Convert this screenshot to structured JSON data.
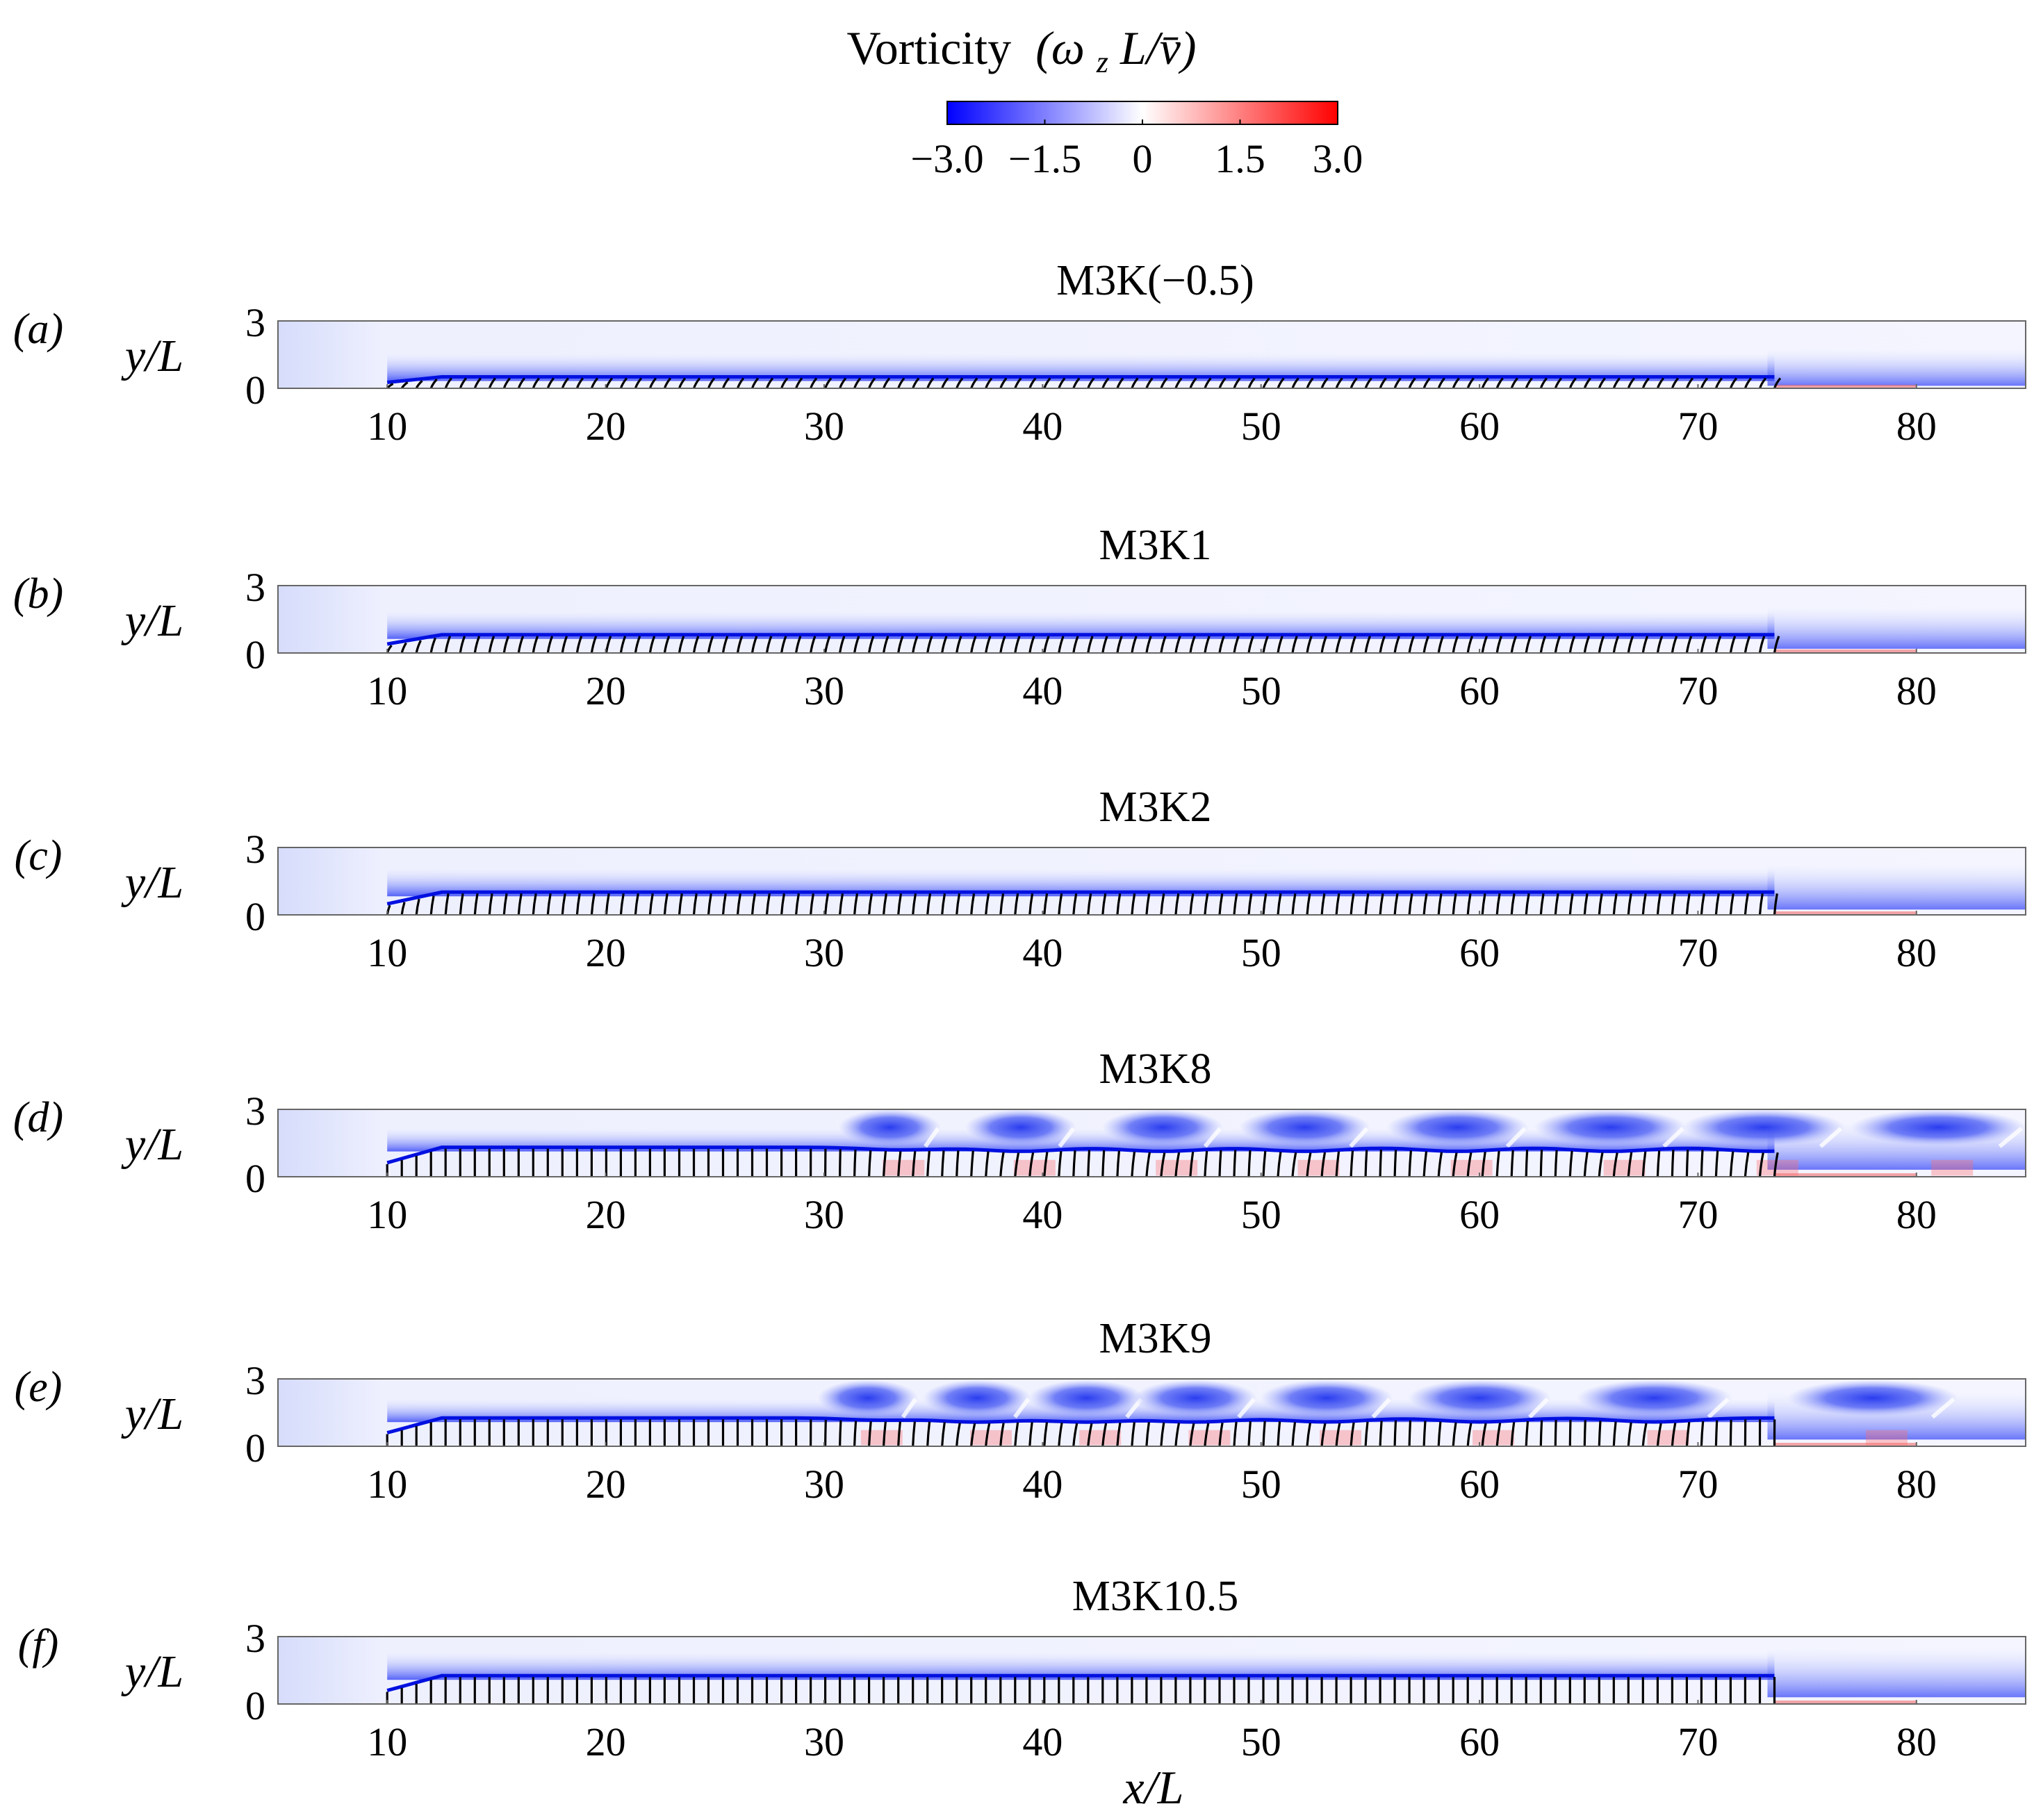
{
  "figure": {
    "colorbar": {
      "title_prefix": "Vorticity",
      "title_math": "(ω",
      "title_sub": "z",
      "title_math2": "L/v̄)",
      "min": -3.0,
      "max": 3.0,
      "tick_values": [
        -3.0,
        -1.5,
        0,
        1.5,
        3.0
      ],
      "tick_labels": [
        "−3.0",
        "−1.5",
        "0",
        "1.5",
        "3.0"
      ],
      "colors": {
        "negative": "#0000ff",
        "zero": "#ffffff",
        "positive": "#ff0000"
      }
    },
    "x_axis_label": "x/L",
    "y_axis_label": "y/L"
  },
  "chart_data": [
    {
      "type": "heatmap",
      "panel_label": "(a)",
      "title": "M3K(−0.5)",
      "xlabel": "x/L",
      "ylabel": "y/L",
      "xlim": [
        5,
        85
      ],
      "ylim": [
        0,
        3
      ],
      "xticks": [
        10,
        20,
        30,
        40,
        50,
        60,
        70,
        80
      ],
      "yticks": [
        0,
        3
      ],
      "canopy": {
        "x_start": 10,
        "x_end": 73.5,
        "height": 0.45,
        "lean": 1.2,
        "rows": 96
      },
      "flow": "steady shear layer over inclined canopy",
      "vortex_centers_x": []
    },
    {
      "type": "heatmap",
      "panel_label": "(b)",
      "title": "M3K1",
      "xlabel": "x/L",
      "ylabel": "y/L",
      "xlim": [
        5,
        85
      ],
      "ylim": [
        0,
        3
      ],
      "xticks": [
        10,
        20,
        30,
        40,
        50,
        60,
        70,
        80
      ],
      "yticks": [
        0,
        3
      ],
      "canopy": {
        "x_start": 10,
        "x_end": 73.5,
        "height": 0.75,
        "lean": 0.9,
        "rows": 96
      },
      "flow": "steady shear layer",
      "vortex_centers_x": []
    },
    {
      "type": "heatmap",
      "panel_label": "(c)",
      "title": "M3K2",
      "xlabel": "x/L",
      "ylabel": "y/L",
      "xlim": [
        5,
        85
      ],
      "ylim": [
        0,
        3
      ],
      "xticks": [
        10,
        20,
        30,
        40,
        50,
        60,
        70,
        80
      ],
      "yticks": [
        0,
        3
      ],
      "canopy": {
        "x_start": 10,
        "x_end": 73.5,
        "height": 0.95,
        "lean": 0.55,
        "rows": 96
      },
      "flow": "steady shear layer",
      "vortex_centers_x": []
    },
    {
      "type": "heatmap",
      "panel_label": "(d)",
      "title": "M3K8",
      "xlabel": "x/L",
      "ylabel": "y/L",
      "xlim": [
        5,
        85
      ],
      "ylim": [
        0,
        3
      ],
      "xticks": [
        10,
        20,
        30,
        40,
        50,
        60,
        70,
        80
      ],
      "yticks": [
        0,
        3
      ],
      "canopy": {
        "x_start": 10,
        "x_end": 73.5,
        "height": 1.25,
        "lean": 0.0,
        "rows": 96
      },
      "flow": "Kelvin-Helmholtz vortex shedding",
      "vortex_centers_x": [
        33,
        39,
        45.5,
        52,
        59,
        66,
        73,
        81
      ]
    },
    {
      "type": "heatmap",
      "panel_label": "(e)",
      "title": "M3K9",
      "xlabel": "x/L",
      "ylabel": "y/L",
      "xlim": [
        5,
        85
      ],
      "ylim": [
        0,
        3
      ],
      "xticks": [
        10,
        20,
        30,
        40,
        50,
        60,
        70,
        80
      ],
      "yticks": [
        0,
        3
      ],
      "canopy": {
        "x_start": 10,
        "x_end": 73.5,
        "height": 1.2,
        "lean": 0.0,
        "rows": 96
      },
      "flow": "Kelvin-Helmholtz vortex shedding",
      "vortex_centers_x": [
        32,
        37,
        42,
        47,
        53,
        60,
        68,
        78
      ]
    },
    {
      "type": "heatmap",
      "panel_label": "(f)",
      "title": "M3K10.5",
      "xlabel": "x/L",
      "ylabel": "y/L",
      "xlim": [
        5,
        85
      ],
      "ylim": [
        0,
        3
      ],
      "xticks": [
        10,
        20,
        30,
        40,
        50,
        60,
        70,
        80
      ],
      "yticks": [
        0,
        3
      ],
      "canopy": {
        "x_start": 10,
        "x_end": 73.5,
        "height": 1.2,
        "lean": 0.0,
        "rows": 96
      },
      "flow": "steady shear layer",
      "vortex_centers_x": []
    }
  ]
}
